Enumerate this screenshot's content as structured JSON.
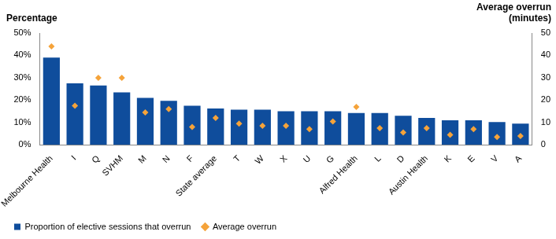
{
  "chart_data": {
    "type": "bar",
    "y_label": "Percentage",
    "y2_label": "Average overrun (minutes)",
    "categories": [
      "Melbourne Health",
      "I",
      "Q",
      "SVHM",
      "M",
      "N",
      "F",
      "State average",
      "T",
      "W",
      "X",
      "U",
      "G",
      "Alfred Health",
      "L",
      "D",
      "Austin Health",
      "K",
      "E",
      "V",
      "A"
    ],
    "series": [
      {
        "name": "Proportion of elective sessions that overrun",
        "type": "bar",
        "color": "#0f4d9c",
        "values": [
          39,
          27.5,
          26.5,
          23.5,
          21,
          19.7,
          17.5,
          16.3,
          15.7,
          15.7,
          15,
          15,
          15,
          14.2,
          14.2,
          13,
          12,
          11,
          11,
          10.2,
          9.5
        ]
      },
      {
        "name": "Average overrun",
        "type": "scatter",
        "marker": "diamond",
        "color": "#f5a33a",
        "axis": "y2",
        "values": [
          44,
          17.5,
          30,
          30,
          14.5,
          16,
          8,
          12,
          9.5,
          8.5,
          8.5,
          7,
          10.5,
          17,
          7.5,
          5.5,
          7.5,
          4.5,
          7,
          3.5,
          4
        ]
      }
    ],
    "ylim": [
      0,
      50
    ],
    "yticks": [
      {
        "value": 0,
        "label": "0%"
      },
      {
        "value": 10,
        "label": "10%"
      },
      {
        "value": 20,
        "label": "20%"
      },
      {
        "value": 30,
        "label": "30%"
      },
      {
        "value": 40,
        "label": "40%"
      },
      {
        "value": 50,
        "label": "50%"
      }
    ],
    "y2lim": [
      0,
      50
    ],
    "y2ticks": [
      0,
      10,
      20,
      30,
      40,
      50
    ],
    "grid": false,
    "legend": "bottom"
  }
}
